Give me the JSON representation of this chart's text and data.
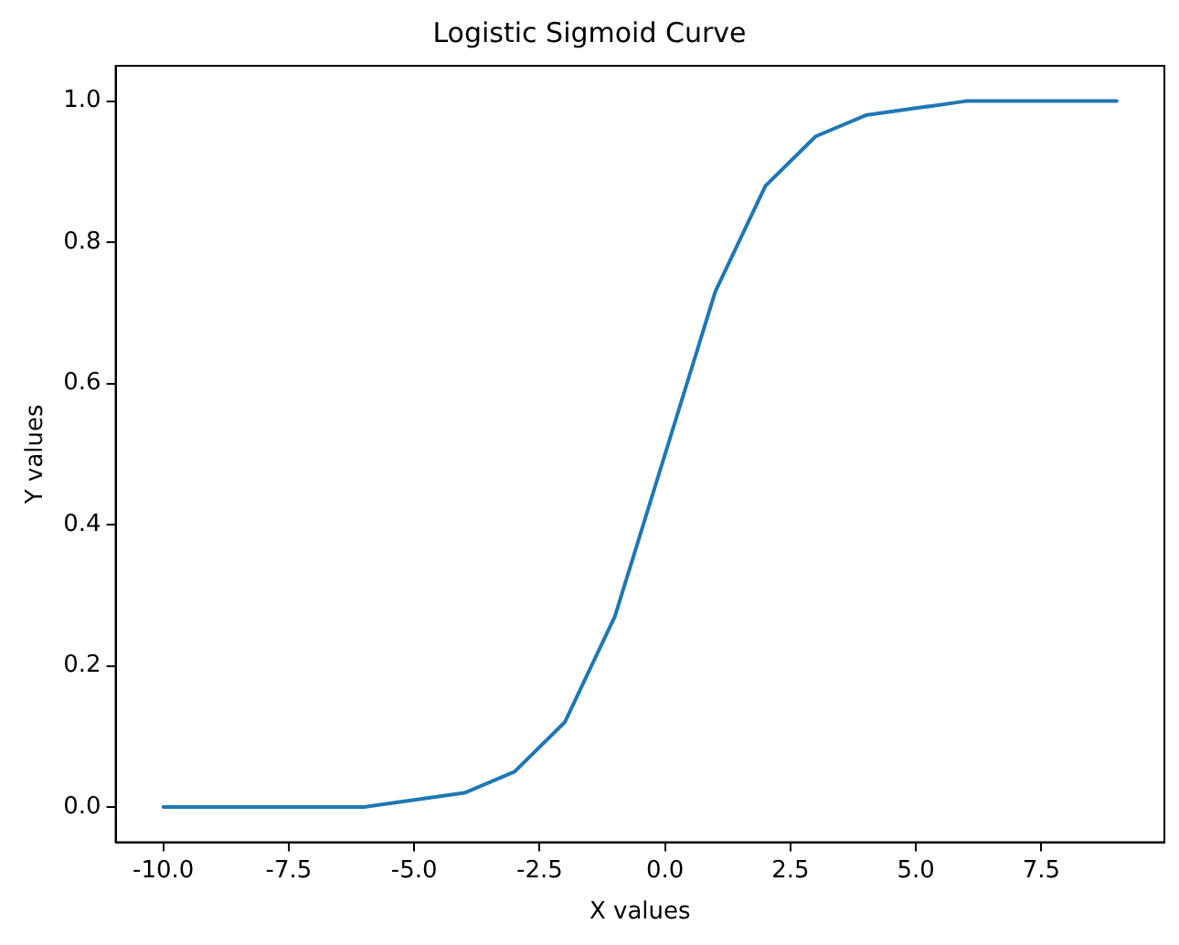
{
  "chart_data": {
    "type": "line",
    "title": "Logistic Sigmoid Curve",
    "xlabel": "X values",
    "ylabel": "Y values",
    "x": [
      -10,
      -9,
      -8,
      -7,
      -6,
      -5,
      -4,
      -3,
      -2,
      -1,
      0,
      1,
      2,
      3,
      4,
      5,
      6,
      7,
      8,
      9
    ],
    "series": [
      {
        "color": "#1f77b4",
        "values": [
          0.0,
          0.0,
          0.0,
          0.0,
          0.0,
          0.01,
          0.02,
          0.05,
          0.12,
          0.27,
          0.5,
          0.73,
          0.88,
          0.95,
          0.98,
          0.99,
          1.0,
          1.0,
          1.0,
          1.0
        ]
      }
    ],
    "xlim": [
      -10.95,
      9.95
    ],
    "ylim": [
      -0.05,
      1.05
    ],
    "xticks": [
      {
        "value": -10,
        "label": "-10.0"
      },
      {
        "value": -7.5,
        "label": "-7.5"
      },
      {
        "value": -5,
        "label": "-5.0"
      },
      {
        "value": -2.5,
        "label": "-2.5"
      },
      {
        "value": 0,
        "label": "0.0"
      },
      {
        "value": 2.5,
        "label": "2.5"
      },
      {
        "value": 5,
        "label": "5.0"
      },
      {
        "value": 7.5,
        "label": "7.5"
      }
    ],
    "yticks": [
      {
        "value": 0,
        "label": "0.0"
      },
      {
        "value": 0.2,
        "label": "0.2"
      },
      {
        "value": 0.4,
        "label": "0.4"
      },
      {
        "value": 0.6,
        "label": "0.6"
      },
      {
        "value": 0.8,
        "label": "0.8"
      },
      {
        "value": 1,
        "label": "1.0"
      }
    ],
    "grid": false,
    "legend": false,
    "marker": "none",
    "line_style": "solid"
  }
}
